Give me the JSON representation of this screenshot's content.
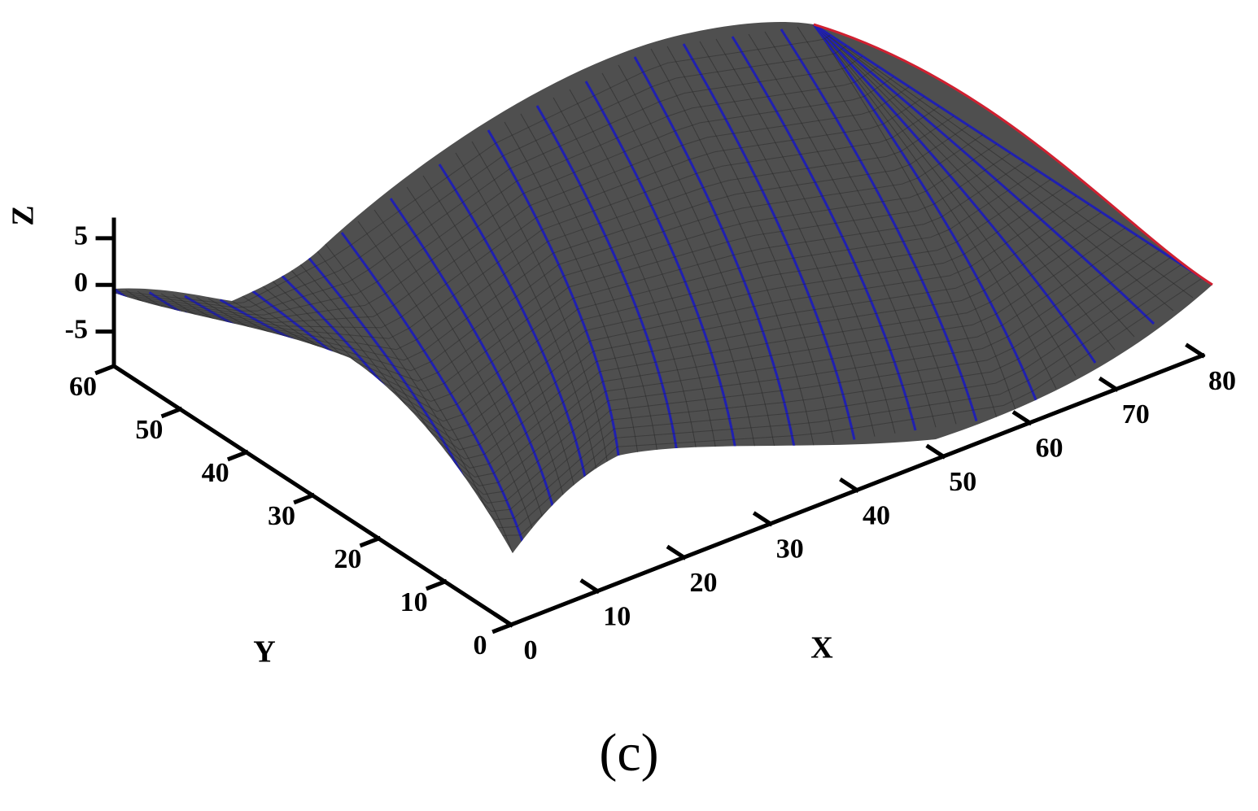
{
  "chart_data": {
    "type": "surface",
    "xlabel": "X",
    "ylabel": "Y",
    "zlabel": "Z",
    "caption": "(c)",
    "xlim": [
      0,
      80
    ],
    "xticks": [
      0,
      10,
      20,
      30,
      40,
      50,
      60,
      70,
      80
    ],
    "ylim": [
      0,
      60
    ],
    "yticks": [
      0,
      10,
      20,
      30,
      40,
      50,
      60
    ],
    "zlim": [
      -8.7,
      7
    ],
    "zticks": [
      -5,
      0,
      5
    ],
    "color": "#4f4f4f",
    "line_color": "#2020b0",
    "edge_color": "#d02030"
  }
}
